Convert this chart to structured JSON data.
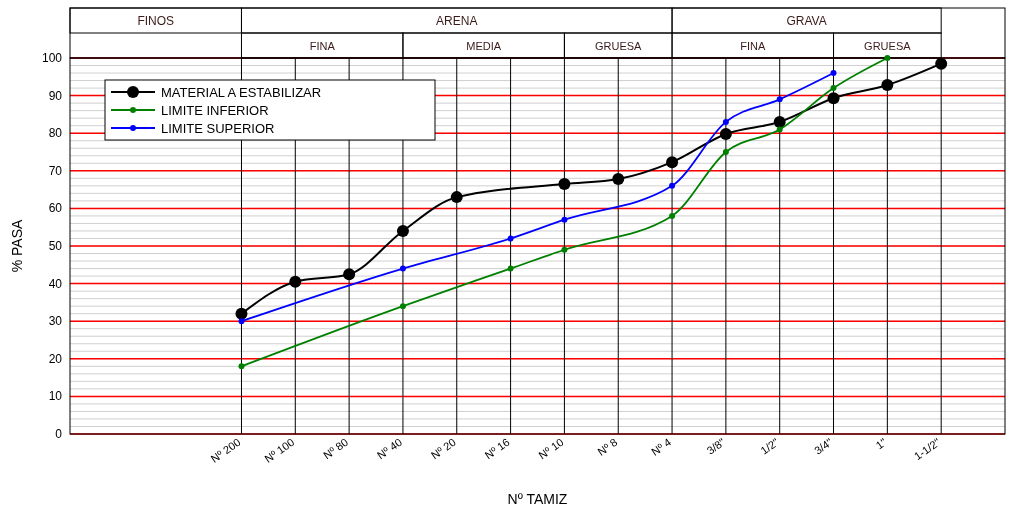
{
  "chart_data": {
    "type": "line",
    "xlabel": "Nº TAMIZ",
    "ylabel": "% PASA",
    "grid": true,
    "legend": "top left",
    "marker": "circle",
    "line_style": "solid",
    "categories": [
      null,
      null,
      null,
      "Nº 200",
      "Nº 100",
      "Nº 80",
      "Nº 40",
      "Nº 20",
      "Nº 16",
      "Nº 10",
      "Nº 8",
      "Nº 4",
      "3/8\"",
      "1/2\"",
      "3/4\"",
      "1\"",
      "1-1/2\"",
      null
    ],
    "ylim": [
      0,
      100
    ],
    "yticks": [
      0,
      10,
      20,
      30,
      40,
      50,
      60,
      70,
      80,
      90,
      100
    ],
    "series": [
      {
        "name": "MATERIAL A ESTABILIZAR",
        "color": "#000000",
        "values": [
          null,
          null,
          null,
          32,
          40.5,
          42.5,
          54,
          63,
          null,
          66.5,
          67.8,
          72.3,
          79.8,
          83,
          89.3,
          92.8,
          98.5,
          null
        ]
      },
      {
        "name": "LIMITE INFERIOR",
        "color": "#008000",
        "values": [
          null,
          null,
          null,
          18,
          null,
          null,
          34,
          null,
          44,
          49,
          null,
          58,
          75,
          81,
          92,
          100,
          null,
          null
        ]
      },
      {
        "name": "LIMITE SUPERIOR",
        "color": "#0000ff",
        "values": [
          null,
          null,
          null,
          30,
          null,
          null,
          44,
          null,
          52,
          57,
          null,
          66,
          83,
          89,
          96,
          null,
          null,
          null
        ]
      }
    ],
    "annotations": [
      "FINOS",
      "ARENA",
      "GRAVA",
      "FINA",
      "MEDIA",
      "GRUESA",
      "FINA",
      "GRUESA"
    ]
  }
}
